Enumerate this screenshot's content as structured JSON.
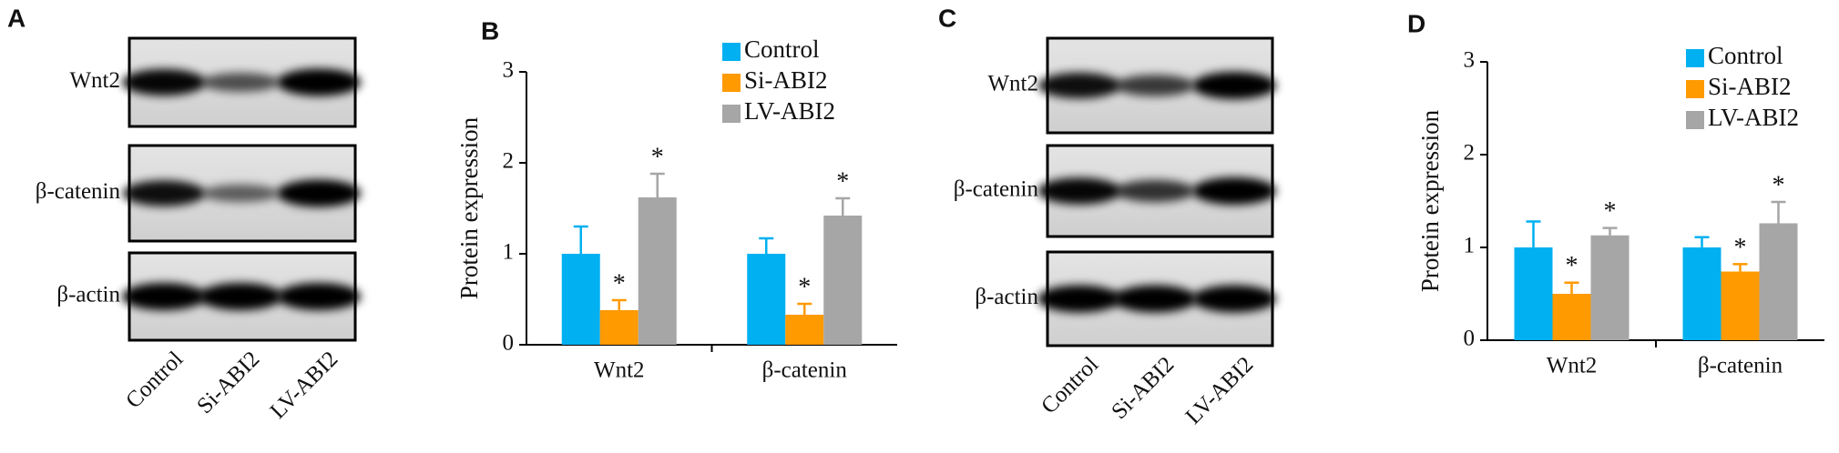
{
  "panels": [
    {
      "label": "A",
      "rows": [
        "Wnt2",
        "β-catenin",
        "β-actin"
      ],
      "lanes": [
        "Control",
        "Si-ABI2",
        "LV-ABI2"
      ]
    },
    {
      "label": "C",
      "rows": [
        "Wnt2",
        "β-catenin",
        "β-actin"
      ],
      "lanes": [
        "Control",
        "Si-ABI2",
        "LV-ABI2"
      ]
    }
  ],
  "chart_data": [
    {
      "type": "bar",
      "panel_label": "B",
      "ylabel": "Protein expression",
      "categories": [
        "Wnt2",
        "β-catenin"
      ],
      "series": [
        {
          "name": "Control",
          "color": "#00b0f0",
          "values": [
            1.0,
            1.0
          ],
          "errors": [
            0.3,
            0.17
          ],
          "significance": [
            null,
            null
          ]
        },
        {
          "name": "Si-ABI2",
          "color": "#ff9a00",
          "values": [
            0.38,
            0.33
          ],
          "errors": [
            0.11,
            0.12
          ],
          "significance": [
            "*",
            "*"
          ]
        },
        {
          "name": "LV-ABI2",
          "color": "#a6a6a6",
          "values": [
            1.62,
            1.42
          ],
          "errors": [
            0.26,
            0.19
          ],
          "significance": [
            "*",
            "*"
          ]
        }
      ],
      "ylim": [
        0,
        3
      ],
      "yticks": [
        0,
        1,
        2,
        3
      ],
      "legend": "upper right"
    },
    {
      "type": "bar",
      "panel_label": "D",
      "ylabel": "Protein expression",
      "categories": [
        "Wnt2",
        "β-catenin"
      ],
      "series": [
        {
          "name": "Control",
          "color": "#00b0f0",
          "values": [
            1.0,
            1.0
          ],
          "errors": [
            0.28,
            0.11
          ],
          "significance": [
            null,
            null
          ]
        },
        {
          "name": "Si-ABI2",
          "color": "#ff9a00",
          "values": [
            0.5,
            0.74
          ],
          "errors": [
            0.12,
            0.08
          ],
          "significance": [
            "*",
            "*"
          ]
        },
        {
          "name": "LV-ABI2",
          "color": "#a6a6a6",
          "values": [
            1.13,
            1.26
          ],
          "errors": [
            0.08,
            0.23
          ],
          "significance": [
            "*",
            "*"
          ]
        }
      ],
      "ylim": [
        0,
        3
      ],
      "yticks": [
        0,
        1,
        2,
        3
      ],
      "legend": "upper right"
    }
  ]
}
